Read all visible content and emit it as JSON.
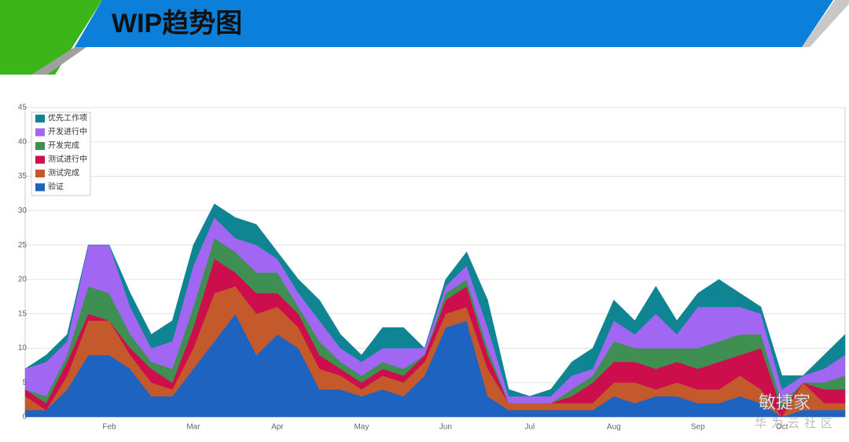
{
  "header": {
    "title": "WIP趋势图"
  },
  "chart_data": {
    "type": "stacked_area",
    "categories": [
      null,
      null,
      null,
      null,
      "Feb",
      null,
      null,
      null,
      "Mar",
      null,
      null,
      null,
      "Apr",
      null,
      null,
      null,
      "May",
      null,
      null,
      null,
      "Jun",
      null,
      null,
      null,
      "Jul",
      null,
      null,
      null,
      "Aug",
      null,
      null,
      null,
      "Sep",
      null,
      null,
      null,
      "Oct",
      null,
      null,
      null
    ],
    "series": [
      {
        "name": "验证",
        "color": "#1f63c0",
        "values": [
          1,
          1,
          4,
          9,
          9,
          7,
          3,
          3,
          7,
          11,
          15,
          9,
          12,
          10,
          4,
          4,
          3,
          4,
          3,
          6,
          13,
          14,
          3,
          1,
          1,
          1,
          1,
          1,
          3,
          2,
          3,
          3,
          2,
          2,
          3,
          2,
          0,
          1,
          1,
          1
        ]
      },
      {
        "name": "测试完成",
        "color": "#c45a2c",
        "values": [
          2,
          0,
          2,
          5,
          5,
          2,
          2,
          1,
          3,
          7,
          4,
          6,
          4,
          3,
          3,
          2,
          1,
          2,
          2,
          2,
          2,
          2,
          4,
          1,
          1,
          1,
          1,
          1,
          2,
          3,
          1,
          2,
          2,
          2,
          3,
          2,
          0,
          4,
          1,
          1
        ]
      },
      {
        "name": "测试进行中",
        "color": "#cc0f4c",
        "values": [
          1,
          1,
          2,
          1,
          0,
          1,
          2,
          1,
          3,
          5,
          2,
          3,
          2,
          2,
          2,
          1,
          1,
          1,
          1,
          1,
          2,
          3,
          2,
          0,
          0,
          0,
          1,
          3,
          3,
          3,
          3,
          3,
          3,
          4,
          3,
          6,
          1,
          0,
          2,
          2
        ]
      },
      {
        "name": "开发完成",
        "color": "#3f8f52",
        "values": [
          0,
          1,
          1,
          4,
          4,
          2,
          1,
          2,
          3,
          3,
          3,
          3,
          3,
          1,
          2,
          1,
          1,
          1,
          1,
          0,
          1,
          1,
          1,
          0,
          0,
          0,
          1,
          1,
          3,
          2,
          3,
          2,
          3,
          3,
          3,
          2,
          1,
          0,
          1,
          2
        ]
      },
      {
        "name": "开发进行中",
        "color": "#a167f2",
        "values": [
          3,
          5,
          2,
          6,
          7,
          4,
          2,
          4,
          6,
          3,
          2,
          4,
          2,
          2,
          3,
          2,
          2,
          2,
          3,
          1,
          1,
          2,
          3,
          1,
          1,
          1,
          2,
          1,
          3,
          2,
          5,
          2,
          6,
          5,
          4,
          3,
          2,
          1,
          2,
          3
        ]
      },
      {
        "name": "优先工作项",
        "color": "#0f8594",
        "values": [
          0,
          1,
          1,
          0,
          0,
          2,
          2,
          3,
          3,
          2,
          3,
          3,
          1,
          2,
          3,
          2,
          1,
          3,
          3,
          0,
          1,
          2,
          4,
          1,
          0,
          1,
          2,
          3,
          3,
          2,
          4,
          2,
          2,
          4,
          2,
          1,
          2,
          0,
          2,
          3
        ]
      }
    ],
    "ylim": [
      0,
      45
    ],
    "yticks": [
      0,
      5,
      10,
      15,
      20,
      25,
      30,
      35,
      40,
      45
    ],
    "grid": true,
    "legend": "top-left"
  },
  "watermark": {
    "brand": "敏捷家",
    "community": "华为云社区"
  }
}
